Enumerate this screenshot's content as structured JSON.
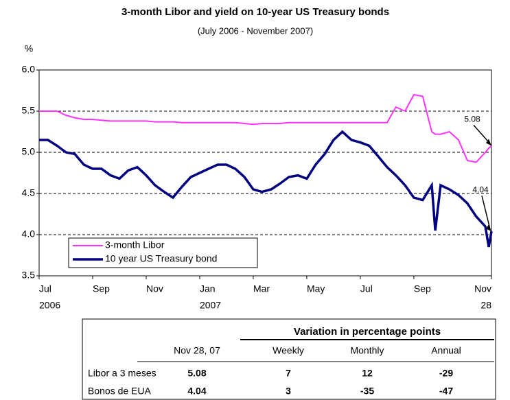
{
  "chart_data": {
    "type": "line",
    "title": "3-month Libor and yield on 10-year US Treasury bonds",
    "subtitle": "(July 2006 - November 2007)",
    "y_label": "%",
    "x": [
      0,
      0.33,
      0.67,
      1,
      1.33,
      1.67,
      2,
      2.33,
      2.67,
      3,
      3.33,
      3.67,
      4,
      4.33,
      4.67,
      5,
      5.33,
      5.67,
      6,
      6.33,
      6.67,
      7,
      7.33,
      7.67,
      8,
      8.33,
      8.67,
      9,
      9.33,
      9.67,
      10,
      10.33,
      10.67,
      11,
      11.33,
      11.67,
      12,
      12.33,
      12.67,
      13,
      13.33,
      13.67,
      14,
      14.33,
      14.67,
      14.8,
      15,
      15.33,
      15.67,
      16,
      16.33,
      16.67,
      16.8,
      16.9
    ],
    "series": [
      {
        "name": "3-month Libor",
        "color": "#ff33ff",
        "values": [
          5.5,
          5.5,
          5.5,
          5.45,
          5.42,
          5.4,
          5.4,
          5.39,
          5.38,
          5.38,
          5.38,
          5.38,
          5.38,
          5.37,
          5.37,
          5.37,
          5.36,
          5.36,
          5.36,
          5.36,
          5.36,
          5.36,
          5.36,
          5.35,
          5.34,
          5.35,
          5.35,
          5.35,
          5.36,
          5.36,
          5.36,
          5.36,
          5.36,
          5.36,
          5.36,
          5.36,
          5.36,
          5.36,
          5.36,
          5.36,
          5.55,
          5.5,
          5.7,
          5.68,
          5.25,
          5.22,
          5.22,
          5.25,
          5.15,
          4.9,
          4.88,
          5.0,
          5.05,
          5.08
        ]
      },
      {
        "name": "10 year US Treasury bond",
        "color": "#000080",
        "values": [
          5.15,
          5.15,
          5.08,
          5.0,
          4.98,
          4.85,
          4.8,
          4.8,
          4.72,
          4.68,
          4.78,
          4.82,
          4.72,
          4.6,
          4.52,
          4.45,
          4.58,
          4.7,
          4.75,
          4.8,
          4.85,
          4.85,
          4.8,
          4.7,
          4.55,
          4.52,
          4.55,
          4.62,
          4.7,
          4.72,
          4.68,
          4.85,
          4.98,
          5.15,
          5.25,
          5.15,
          5.12,
          5.08,
          4.95,
          4.82,
          4.72,
          4.6,
          4.45,
          4.42,
          4.6,
          4.05,
          4.6,
          4.55,
          4.48,
          4.38,
          4.22,
          4.1,
          3.85,
          4.04
        ]
      }
    ],
    "xlim": [
      0,
      16.9
    ],
    "xticks": [
      {
        "value": 0,
        "label": "Jul"
      },
      {
        "value": 2,
        "label": "Sep"
      },
      {
        "value": 4,
        "label": "Nov"
      },
      {
        "value": 6,
        "label": "Jan"
      },
      {
        "value": 8,
        "label": "Mar"
      },
      {
        "value": 10,
        "label": "May"
      },
      {
        "value": 12,
        "label": "Jul"
      },
      {
        "value": 14,
        "label": "Sep"
      },
      {
        "value": 16.9,
        "label": "Nov"
      }
    ],
    "xtick_sublabels": [
      {
        "value": 0,
        "label": "2006"
      },
      {
        "value": 6,
        "label": "2007"
      },
      {
        "value": 16.9,
        "label": "28"
      }
    ],
    "ylim": [
      3.5,
      6.0
    ],
    "yticks": [
      {
        "value": 3.5,
        "label": "3.5"
      },
      {
        "value": 4.0,
        "label": "4.0"
      },
      {
        "value": 4.5,
        "label": "4.5"
      },
      {
        "value": 5.0,
        "label": "5.0"
      },
      {
        "value": 5.5,
        "label": "5.5"
      },
      {
        "value": 6.0,
        "label": "6.0"
      }
    ],
    "grid": true,
    "legend": "lower left",
    "annotations": [
      {
        "label": "5.08"
      },
      {
        "label": "4.04"
      }
    ]
  },
  "table": {
    "title": "Variation in percentage points",
    "columns": [
      "Nov 28, 07",
      "Weekly",
      "Monthly",
      "Annual"
    ],
    "rows": [
      [
        "Libor a 3 meses",
        "5.08",
        "7",
        "12",
        "-29"
      ],
      [
        "Bonos de EUA",
        "4.04",
        "3",
        "-35",
        "-47"
      ]
    ]
  }
}
